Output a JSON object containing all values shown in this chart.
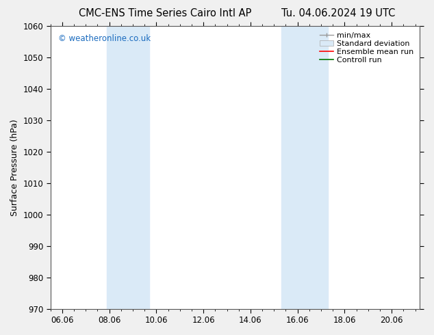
{
  "title_left": "CMC-ENS Time Series Cairo Intl AP",
  "title_right": "Tu. 04.06.2024 19 UTC",
  "ylabel": "Surface Pressure (hPa)",
  "ylim": [
    970,
    1060
  ],
  "yticks": [
    970,
    980,
    990,
    1000,
    1010,
    1020,
    1030,
    1040,
    1050,
    1060
  ],
  "xlim_start": 5.5,
  "xlim_end": 21.2,
  "xtick_labels": [
    "06.06",
    "08.06",
    "10.06",
    "12.06",
    "14.06",
    "16.06",
    "18.06",
    "20.06"
  ],
  "xtick_positions": [
    6.0,
    8.0,
    10.0,
    12.0,
    14.0,
    16.0,
    18.0,
    20.0
  ],
  "shaded_regions": [
    {
      "xmin": 7.9,
      "xmax": 9.7,
      "color": "#daeaf7"
    },
    {
      "xmin": 15.3,
      "xmax": 17.3,
      "color": "#daeaf7"
    }
  ],
  "watermark_text": "© weatheronline.co.uk",
  "watermark_color": "#1a6bbf",
  "background_color": "#f0f0f0",
  "plot_bg_color": "#ffffff",
  "legend_items": [
    {
      "label": "min/max"
    },
    {
      "label": "Standard deviation"
    },
    {
      "label": "Ensemble mean run"
    },
    {
      "label": "Controll run"
    }
  ],
  "title_fontsize": 10.5,
  "axis_label_fontsize": 9,
  "tick_fontsize": 8.5,
  "legend_fontsize": 8.0,
  "watermark_fontsize": 8.5
}
